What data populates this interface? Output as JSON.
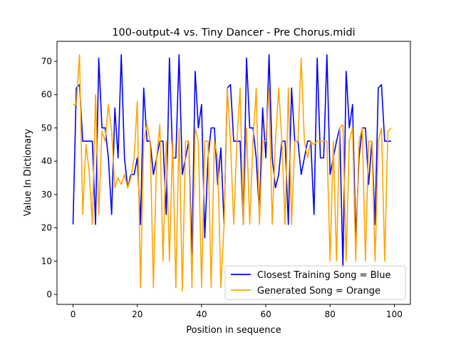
{
  "chart_data": {
    "type": "line",
    "title": "100-output-4 vs. Tiny Dancer - Pre Chorus.midi",
    "xlabel": "Position in sequence",
    "ylabel": "Value In Dictionary",
    "xlim": [
      -5,
      105
    ],
    "ylim": [
      -3,
      76
    ],
    "xticks": [
      0,
      20,
      40,
      60,
      80,
      100
    ],
    "yticks": [
      0,
      10,
      20,
      30,
      40,
      50,
      60,
      70
    ],
    "grid": false,
    "legend_position": "lower-right",
    "x": [
      0,
      1,
      2,
      3,
      4,
      5,
      6,
      7,
      8,
      9,
      10,
      11,
      12,
      13,
      14,
      15,
      16,
      17,
      18,
      19,
      20,
      21,
      22,
      23,
      24,
      25,
      26,
      27,
      28,
      29,
      30,
      31,
      32,
      33,
      34,
      35,
      36,
      37,
      38,
      39,
      40,
      41,
      42,
      43,
      44,
      45,
      46,
      47,
      48,
      49,
      50,
      51,
      52,
      53,
      54,
      55,
      56,
      57,
      58,
      59,
      60,
      61,
      62,
      63,
      64,
      65,
      66,
      67,
      68,
      69,
      70,
      71,
      72,
      73,
      74,
      75,
      76,
      77,
      78,
      79,
      80,
      81,
      82,
      83,
      84,
      85,
      86,
      87,
      88,
      89,
      90,
      91,
      92,
      93,
      94,
      95,
      96,
      97,
      98,
      99
    ],
    "series": [
      {
        "name": "Closest Training Song = Blue",
        "color": "#0000ff",
        "values": [
          21,
          62,
          63,
          46,
          46,
          46,
          46,
          21,
          71,
          50,
          50,
          41,
          24,
          56,
          41,
          72,
          41,
          32,
          36,
          36,
          41,
          21,
          62,
          46,
          46,
          36,
          41,
          46,
          46,
          24,
          71,
          41,
          41,
          72,
          36,
          41,
          46,
          12,
          67,
          50,
          57,
          17,
          41,
          50,
          50,
          33,
          44,
          21,
          62,
          63,
          46,
          46,
          46,
          21,
          71,
          50,
          50,
          41,
          24,
          56,
          41,
          72,
          41,
          32,
          36,
          46,
          46,
          21,
          62,
          46,
          46,
          36,
          41,
          46,
          46,
          24,
          71,
          41,
          41,
          72,
          36,
          41,
          46,
          50,
          8,
          67,
          50,
          57,
          17,
          41,
          50,
          50,
          33,
          46,
          21,
          62,
          63,
          46,
          46,
          46
        ]
      },
      {
        "name": "Generated Song = Orange",
        "color": "#ffa500",
        "values": [
          57,
          57,
          72,
          24,
          45,
          37,
          21,
          60,
          24,
          49,
          46,
          57,
          49,
          32,
          35,
          33,
          36,
          32,
          35,
          41,
          58,
          2,
          46,
          51,
          46,
          2,
          41,
          51,
          10,
          46,
          10,
          46,
          2,
          50,
          1,
          46,
          46,
          2,
          50,
          46,
          2,
          46,
          46,
          2,
          46,
          41,
          2,
          21,
          62,
          46,
          21,
          46,
          62,
          21,
          50,
          21,
          46,
          62,
          21,
          46,
          46,
          62,
          21,
          46,
          62,
          46,
          21,
          62,
          21,
          46,
          46,
          71,
          46,
          41,
          46,
          45,
          46,
          46,
          46,
          46,
          10,
          46,
          10,
          50,
          51,
          10,
          46,
          50,
          10,
          46,
          50,
          10,
          46,
          46,
          10,
          46,
          50,
          10,
          49,
          50
        ]
      }
    ]
  }
}
